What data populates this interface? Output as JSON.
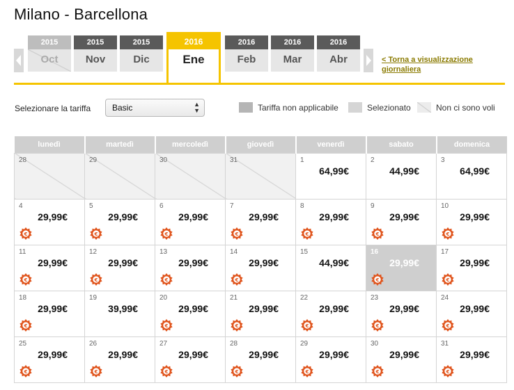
{
  "route_title": "Milano - Barcellona",
  "month_tabs": [
    {
      "year": "2015",
      "month": "Oct",
      "state": "disabled"
    },
    {
      "year": "2015",
      "month": "Nov",
      "state": "normal"
    },
    {
      "year": "2015",
      "month": "Dic",
      "state": "normal"
    },
    {
      "year": "2016",
      "month": "Ene",
      "state": "active"
    },
    {
      "year": "2016",
      "month": "Feb",
      "state": "normal"
    },
    {
      "year": "2016",
      "month": "Mar",
      "state": "normal"
    },
    {
      "year": "2016",
      "month": "Abr",
      "state": "normal"
    }
  ],
  "back_link": "< Torna a visualizzazione giornaliera",
  "fare": {
    "label": "Selezionare la tariffa",
    "selected": "Basic"
  },
  "legend": {
    "not_applicable": "Tariffa non applicabile",
    "selected": "Selezionato",
    "no_flights": "Non ci sono voli"
  },
  "calendar": {
    "weekdays": [
      "lunedì",
      "martedì",
      "mercoledì",
      "giovedì",
      "venerdì",
      "sabato",
      "domenica"
    ],
    "weeks": [
      [
        {
          "day": "28",
          "price": "",
          "promo": false,
          "state": "noflight"
        },
        {
          "day": "29",
          "price": "",
          "promo": false,
          "state": "noflight"
        },
        {
          "day": "30",
          "price": "",
          "promo": false,
          "state": "noflight"
        },
        {
          "day": "31",
          "price": "",
          "promo": false,
          "state": "noflight"
        },
        {
          "day": "1",
          "price": "64,99€",
          "promo": false,
          "state": "normal"
        },
        {
          "day": "2",
          "price": "44,99€",
          "promo": false,
          "state": "normal"
        },
        {
          "day": "3",
          "price": "64,99€",
          "promo": false,
          "state": "normal"
        }
      ],
      [
        {
          "day": "4",
          "price": "29,99€",
          "promo": true,
          "state": "normal"
        },
        {
          "day": "5",
          "price": "29,99€",
          "promo": true,
          "state": "normal"
        },
        {
          "day": "6",
          "price": "29,99€",
          "promo": true,
          "state": "normal"
        },
        {
          "day": "7",
          "price": "29,99€",
          "promo": true,
          "state": "normal"
        },
        {
          "day": "8",
          "price": "29,99€",
          "promo": true,
          "state": "normal"
        },
        {
          "day": "9",
          "price": "29,99€",
          "promo": true,
          "state": "normal"
        },
        {
          "day": "10",
          "price": "29,99€",
          "promo": true,
          "state": "normal"
        }
      ],
      [
        {
          "day": "11",
          "price": "29,99€",
          "promo": true,
          "state": "normal"
        },
        {
          "day": "12",
          "price": "29,99€",
          "promo": true,
          "state": "normal"
        },
        {
          "day": "13",
          "price": "29,99€",
          "promo": true,
          "state": "normal"
        },
        {
          "day": "14",
          "price": "29,99€",
          "promo": true,
          "state": "normal"
        },
        {
          "day": "15",
          "price": "44,99€",
          "promo": false,
          "state": "normal"
        },
        {
          "day": "16",
          "price": "29,99€",
          "promo": true,
          "state": "selected"
        },
        {
          "day": "17",
          "price": "29,99€",
          "promo": true,
          "state": "normal"
        }
      ],
      [
        {
          "day": "18",
          "price": "29,99€",
          "promo": true,
          "state": "normal"
        },
        {
          "day": "19",
          "price": "39,99€",
          "promo": false,
          "state": "normal"
        },
        {
          "day": "20",
          "price": "29,99€",
          "promo": true,
          "state": "normal"
        },
        {
          "day": "21",
          "price": "29,99€",
          "promo": true,
          "state": "normal"
        },
        {
          "day": "22",
          "price": "29,99€",
          "promo": true,
          "state": "normal"
        },
        {
          "day": "23",
          "price": "29,99€",
          "promo": true,
          "state": "normal"
        },
        {
          "day": "24",
          "price": "29,99€",
          "promo": true,
          "state": "normal"
        }
      ],
      [
        {
          "day": "25",
          "price": "29,99€",
          "promo": true,
          "state": "normal"
        },
        {
          "day": "26",
          "price": "29,99€",
          "promo": true,
          "state": "normal"
        },
        {
          "day": "27",
          "price": "29,99€",
          "promo": true,
          "state": "normal"
        },
        {
          "day": "28",
          "price": "29,99€",
          "promo": true,
          "state": "normal"
        },
        {
          "day": "29",
          "price": "29,99€",
          "promo": true,
          "state": "normal"
        },
        {
          "day": "30",
          "price": "29,99€",
          "promo": true,
          "state": "normal"
        },
        {
          "day": "31",
          "price": "29,99€",
          "promo": true,
          "state": "normal"
        }
      ]
    ]
  },
  "icons": {
    "prev": "chevron-left-icon",
    "next": "chevron-right-icon",
    "select": "updown-caret-icon",
    "promo": "euro-promo-badge-icon"
  },
  "colors": {
    "accent": "#f5c400",
    "tab_year_bg": "#5a5a5a",
    "promo_badge": "#e0541c",
    "selected_day": "#cfcfcf",
    "link": "#8a7a00"
  }
}
